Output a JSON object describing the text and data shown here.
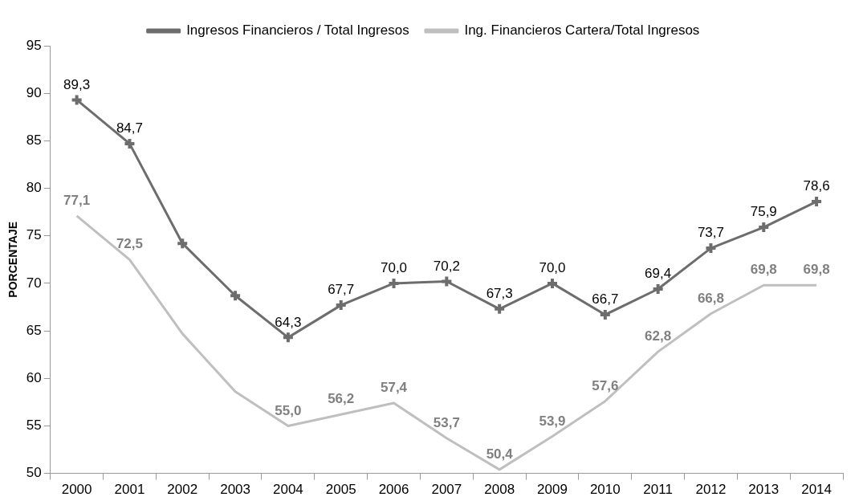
{
  "chart_data": {
    "type": "line",
    "ylabel": "PORCENTAJE",
    "categories": [
      "2000",
      "2001",
      "2002",
      "2003",
      "2004",
      "2005",
      "2006",
      "2007",
      "2008",
      "2009",
      "2010",
      "2011",
      "2012",
      "2013",
      "2014"
    ],
    "series": [
      {
        "name": "Ingresos Financieros / Total Ingresos",
        "color": "#6d6d6d",
        "marker": "cross",
        "values": [
          89.3,
          84.7,
          74.2,
          68.7,
          64.3,
          67.7,
          70.0,
          70.2,
          67.3,
          70.0,
          66.7,
          69.4,
          73.7,
          75.9,
          78.6
        ],
        "value_labels": [
          "89,3",
          "84,7",
          null,
          null,
          "64,3",
          "67,7",
          "70,0",
          "70,2",
          "67,3",
          "70,0",
          "66,7",
          "69,4",
          "73,7",
          "75,9",
          "78,6"
        ]
      },
      {
        "name": "Ing. Financieros Cartera/Total Ingresos",
        "color": "#bfbfbf",
        "marker": "none",
        "values": [
          77.1,
          72.5,
          64.7,
          58.6,
          55.0,
          56.2,
          57.4,
          53.7,
          50.4,
          53.9,
          57.6,
          62.8,
          66.8,
          69.8,
          69.8
        ],
        "value_labels": [
          "77,1",
          "72,5",
          null,
          null,
          "55,0",
          "56,2",
          "57,4",
          "53,7",
          "50,4",
          "53,9",
          "57,6",
          "62,8",
          "66,8",
          "69,8",
          "69,8"
        ]
      }
    ],
    "ylim": [
      50,
      95
    ],
    "yticks": [
      50,
      55,
      60,
      65,
      70,
      75,
      80,
      85,
      90,
      95
    ],
    "grid": false,
    "legend": "top"
  }
}
